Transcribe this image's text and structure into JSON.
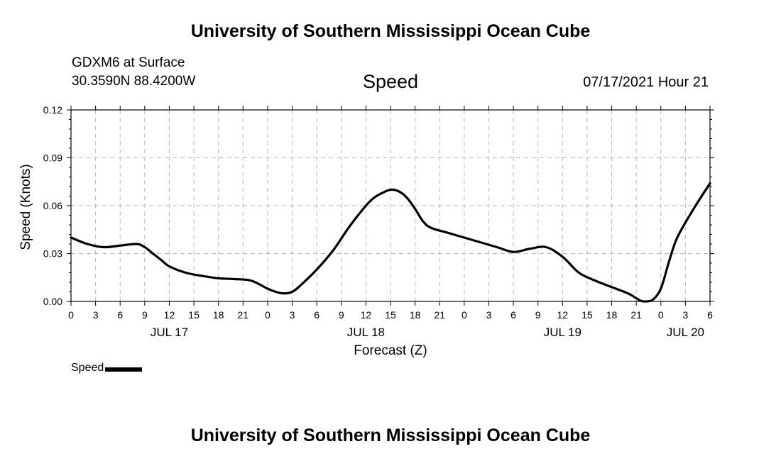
{
  "header": {
    "title": "University of Southern Mississippi Ocean Cube",
    "station_line1": "GDXM6 at Surface",
    "station_line2": "30.3590N  88.4200W",
    "datetime": "07/17/2021 Hour 21"
  },
  "footer": {
    "title": "University of Southern Mississippi Ocean Cube"
  },
  "legend": {
    "label": "Speed"
  },
  "chart_data": {
    "type": "line",
    "title": "Speed",
    "xlabel": "Forecast (Z)",
    "ylabel": "Speed (Knots)",
    "xlim": [
      0,
      78
    ],
    "ylim": [
      0,
      0.12
    ],
    "yticks": [
      0,
      0.03,
      0.06,
      0.09,
      0.12
    ],
    "ytick_labels": [
      "0.00",
      "0.03",
      "0.06",
      "0.09",
      "0.12"
    ],
    "xticks": [
      0,
      3,
      6,
      9,
      12,
      15,
      18,
      21,
      24,
      27,
      30,
      33,
      36,
      39,
      42,
      45,
      48,
      51,
      54,
      57,
      60,
      63,
      66,
      69,
      72,
      75,
      78
    ],
    "xtick_labels": [
      "0",
      "3",
      "6",
      "9",
      "12",
      "15",
      "18",
      "21",
      "0",
      "3",
      "6",
      "9",
      "12",
      "15",
      "18",
      "21",
      "0",
      "3",
      "6",
      "9",
      "12",
      "15",
      "18",
      "21",
      "0",
      "3",
      "6"
    ],
    "day_labels": [
      {
        "hour": 12,
        "label": "JUL 17"
      },
      {
        "hour": 36,
        "label": "JUL 18"
      },
      {
        "hour": 60,
        "label": "JUL 19"
      },
      {
        "hour": 75,
        "label": "JUL 20"
      }
    ],
    "grid": true,
    "series": [
      {
        "name": "Speed",
        "color": "#000000",
        "x": [
          0,
          2,
          4,
          6,
          8,
          9,
          10,
          11,
          12,
          14,
          16,
          18,
          20,
          22,
          24,
          25,
          26,
          27,
          28,
          30,
          32,
          34,
          36,
          37,
          38,
          39,
          40,
          41,
          42,
          43,
          44,
          46,
          48,
          50,
          52,
          54,
          56,
          58,
          60,
          62,
          64,
          66,
          68,
          69,
          69.5,
          70,
          71,
          72,
          73,
          74,
          76,
          78
        ],
        "y": [
          0.04,
          0.036,
          0.034,
          0.035,
          0.036,
          0.034,
          0.03,
          0.026,
          0.022,
          0.018,
          0.016,
          0.0145,
          0.014,
          0.013,
          0.008,
          0.006,
          0.005,
          0.006,
          0.01,
          0.02,
          0.032,
          0.047,
          0.06,
          0.065,
          0.068,
          0.07,
          0.069,
          0.065,
          0.058,
          0.05,
          0.046,
          0.043,
          0.04,
          0.037,
          0.034,
          0.031,
          0.033,
          0.034,
          0.028,
          0.018,
          0.013,
          0.009,
          0.005,
          0.002,
          0.0005,
          0.0,
          0.001,
          0.008,
          0.025,
          0.04,
          0.058,
          0.074
        ]
      }
    ]
  }
}
